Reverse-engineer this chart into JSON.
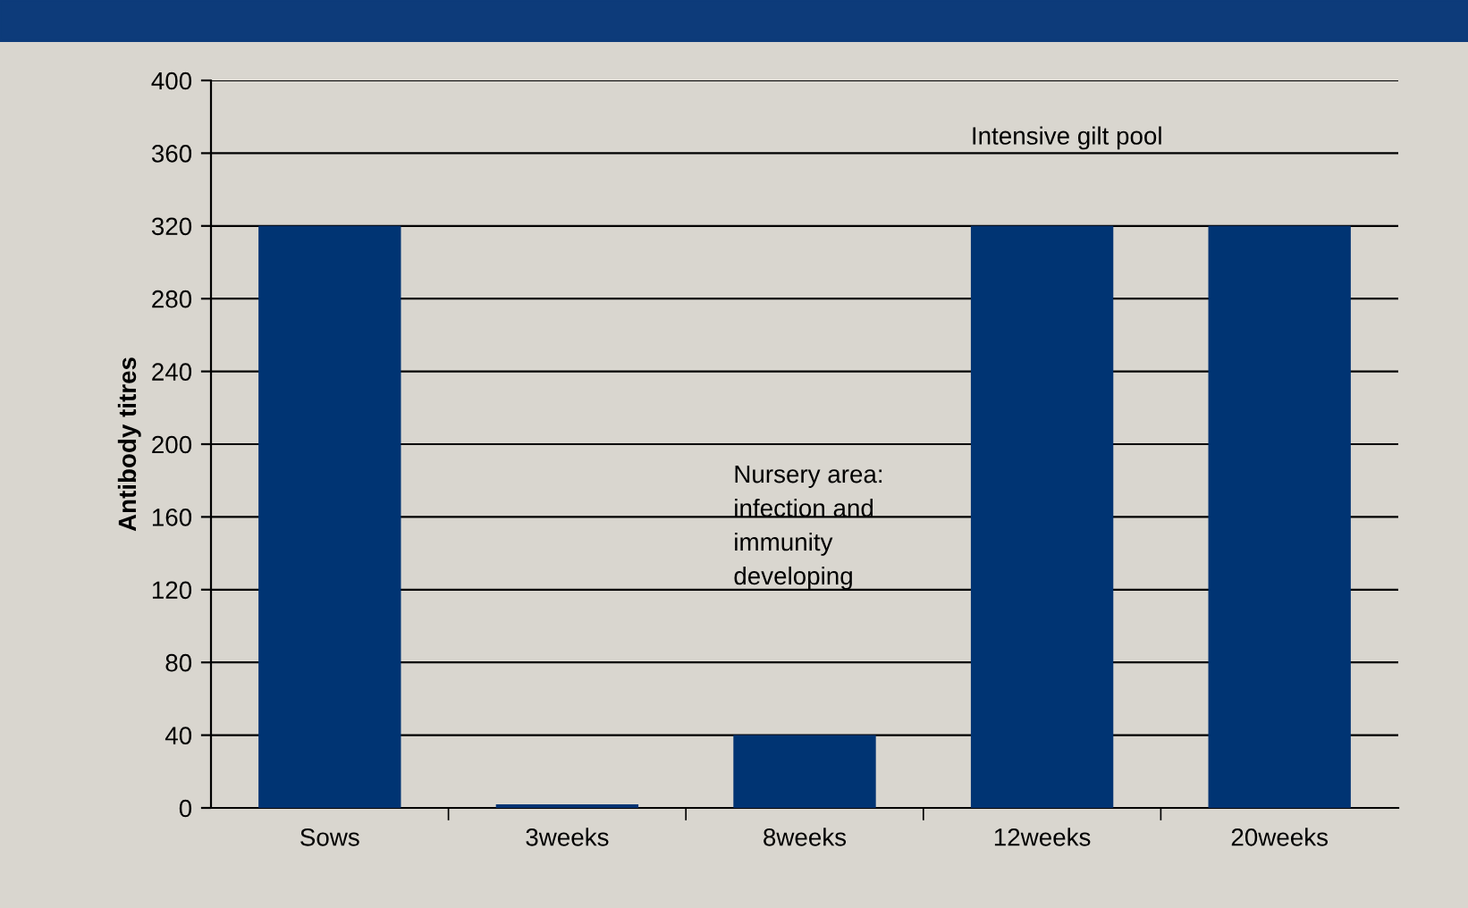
{
  "chart_data": {
    "type": "bar",
    "ylabel": "Antibody titres",
    "categories": [
      "Sows",
      "3weeks",
      "8weeks",
      "12weeks",
      "20weeks"
    ],
    "values": [
      320,
      2,
      40,
      320,
      320
    ],
    "color": "#003473",
    "ylim": [
      0,
      400
    ],
    "yticks": [
      0,
      40,
      80,
      120,
      160,
      200,
      240,
      280,
      320,
      360,
      400
    ],
    "grid": "y",
    "legend": false,
    "annotations": [
      "Nursery area:\ninfection and\nimmunity\ndeveloping",
      "Intensive gilt pool"
    ]
  }
}
